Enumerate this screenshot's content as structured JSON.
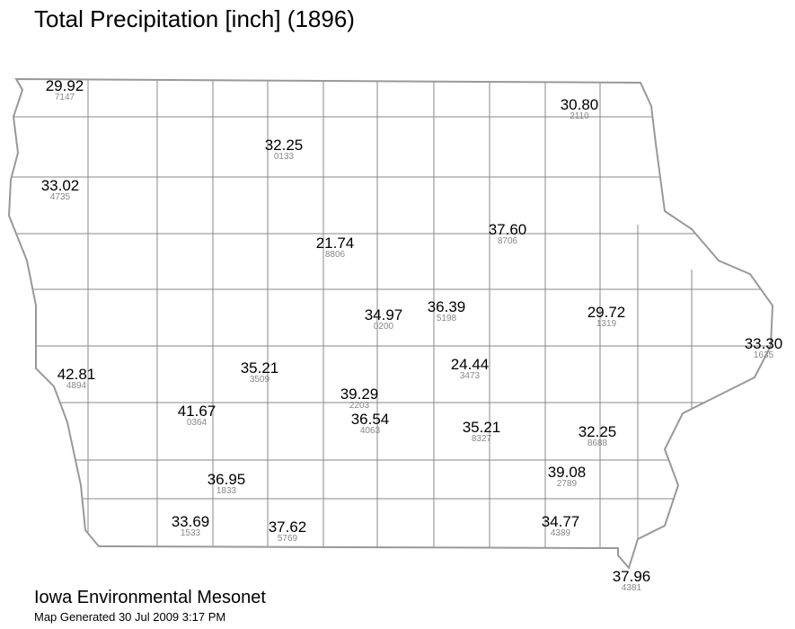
{
  "header": {
    "title": "Total Precipitation [inch] (1896)"
  },
  "stations": [
    {
      "value": "29.92",
      "id": "7147"
    },
    {
      "value": "30.80",
      "id": "2110"
    },
    {
      "value": "32.25",
      "id": "0133"
    },
    {
      "value": "33.02",
      "id": "4735"
    },
    {
      "value": "37.60",
      "id": "8706"
    },
    {
      "value": "21.74",
      "id": "8806"
    },
    {
      "value": "34.97",
      "id": "0200"
    },
    {
      "value": "36.39",
      "id": "5198"
    },
    {
      "value": "29.72",
      "id": "1319"
    },
    {
      "value": "33.30",
      "id": "1635"
    },
    {
      "value": "42.81",
      "id": "4894"
    },
    {
      "value": "35.21",
      "id": "3509"
    },
    {
      "value": "24.44",
      "id": "3473"
    },
    {
      "value": "39.29",
      "id": "2203"
    },
    {
      "value": "41.67",
      "id": "0364"
    },
    {
      "value": "36.54",
      "id": "4063"
    },
    {
      "value": "35.21",
      "id": "8327"
    },
    {
      "value": "32.25",
      "id": "8688"
    },
    {
      "value": "39.08",
      "id": "2789"
    },
    {
      "value": "36.95",
      "id": "1833"
    },
    {
      "value": "33.69",
      "id": "1533"
    },
    {
      "value": "37.62",
      "id": "5769"
    },
    {
      "value": "34.77",
      "id": "4389"
    },
    {
      "value": "37.96",
      "id": "4381"
    }
  ],
  "footer": {
    "organization": "Iowa Environmental Mesonet",
    "generated": "Map Generated 30 Jul 2009 3:17 PM"
  }
}
